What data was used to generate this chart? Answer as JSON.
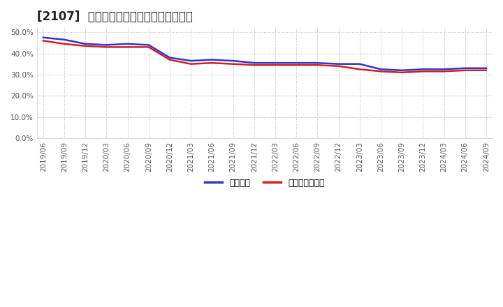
{
  "title": "[2107]  固定比率、固定長期適合率の推移",
  "x_labels": [
    "2019/06",
    "2019/09",
    "2019/12",
    "2020/03",
    "2020/06",
    "2020/09",
    "2020/12",
    "2021/03",
    "2021/06",
    "2021/09",
    "2021/12",
    "2022/03",
    "2022/06",
    "2022/09",
    "2022/12",
    "2023/03",
    "2023/06",
    "2023/09",
    "2023/12",
    "2024/03",
    "2024/06",
    "2024/09"
  ],
  "fixed_ratio": [
    47.5,
    46.5,
    44.5,
    44.0,
    44.5,
    44.0,
    38.0,
    36.5,
    37.0,
    36.5,
    35.5,
    35.5,
    35.5,
    35.5,
    35.0,
    35.0,
    32.5,
    32.0,
    32.5,
    32.5,
    33.0,
    33.0
  ],
  "fixed_long_ratio": [
    46.0,
    44.5,
    43.5,
    43.0,
    43.0,
    43.0,
    37.0,
    35.0,
    35.5,
    35.0,
    34.5,
    34.5,
    34.5,
    34.5,
    34.0,
    32.5,
    31.5,
    31.0,
    31.5,
    31.5,
    32.0,
    32.0
  ],
  "line_color_fixed": "#3333cc",
  "line_color_fixed_long": "#cc2222",
  "legend_fixed": "固定比率",
  "legend_fixed_long": "固定長期適合率",
  "ylim": [
    0,
    52
  ],
  "yticks": [
    0,
    10,
    20,
    30,
    40,
    50
  ],
  "ytick_labels": [
    "0.0%",
    "10.0%",
    "20.0%",
    "30.0%",
    "40.0%",
    "50.0%"
  ],
  "background_color": "#ffffff",
  "grid_color": "#aaaaaa",
  "title_fontsize": 12,
  "tick_fontsize": 7.5,
  "legend_fontsize": 9,
  "linewidth": 1.8
}
